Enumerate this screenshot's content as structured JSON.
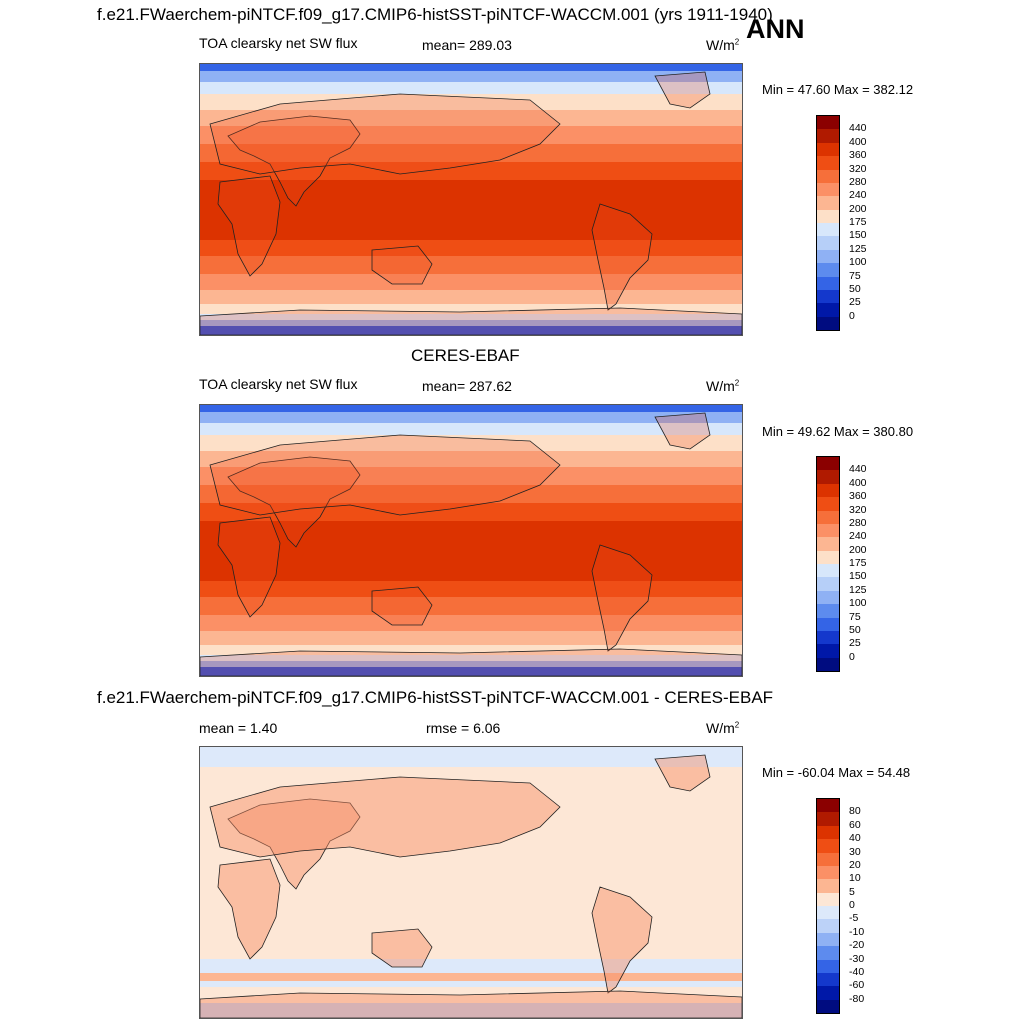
{
  "header": {
    "title": "f.e21.FWaerchem-piNTCF.f09_g17.CMIP6-histSST-piNTCF-WACCM.001 (yrs 1911-1940)",
    "season": "ANN"
  },
  "panels": [
    {
      "variable": "TOA clearsky net SW flux",
      "mean": "mean= 289.03",
      "units": "W/m",
      "units_sup": "2",
      "minmax": "Min =  47.60 Max = 382.12",
      "levels": [
        "440",
        "400",
        "360",
        "320",
        "280",
        "240",
        "200",
        "175",
        "150",
        "125",
        "100",
        "75",
        "50",
        "25",
        "0"
      ]
    },
    {
      "title": "CERES-EBAF",
      "variable": "TOA clearsky net SW flux",
      "mean": "mean= 287.62",
      "units": "W/m",
      "units_sup": "2",
      "minmax": "Min =  49.62 Max = 380.80",
      "levels": [
        "440",
        "400",
        "360",
        "320",
        "280",
        "240",
        "200",
        "175",
        "150",
        "125",
        "100",
        "75",
        "50",
        "25",
        "0"
      ]
    },
    {
      "title": "f.e21.FWaerchem-piNTCF.f09_g17.CMIP6-histSST-piNTCF-WACCM.001 - CERES-EBAF",
      "mean": "mean =   1.40",
      "rmse": "rmse =   6.06",
      "units": "W/m",
      "units_sup": "2",
      "minmax": "Min = -60.04 Max =  54.48",
      "levels": [
        "80",
        "60",
        "40",
        "30",
        "20",
        "10",
        "5",
        "0",
        "-5",
        "-10",
        "-20",
        "-30",
        "-40",
        "-60",
        "-80"
      ]
    }
  ],
  "colors": {
    "abs_scale": [
      "#8b0000",
      "#b01a00",
      "#dc3300",
      "#ef4e14",
      "#f66f3a",
      "#fb9066",
      "#fcb692",
      "#fde0c8",
      "#d7e7fb",
      "#b6cff8",
      "#8fb1f4",
      "#5d8bee",
      "#3464e6",
      "#1438cc",
      "#0018a8",
      "#000c80"
    ],
    "diff_scale": [
      "#8b0000",
      "#b01a00",
      "#dc3300",
      "#ef4e14",
      "#f66f3a",
      "#fb9066",
      "#fcb692",
      "#fde7d6",
      "#dde9fa",
      "#bcd2f8",
      "#8fb1f4",
      "#5d8bee",
      "#3464e6",
      "#1438cc",
      "#0018a8",
      "#000c80"
    ]
  }
}
